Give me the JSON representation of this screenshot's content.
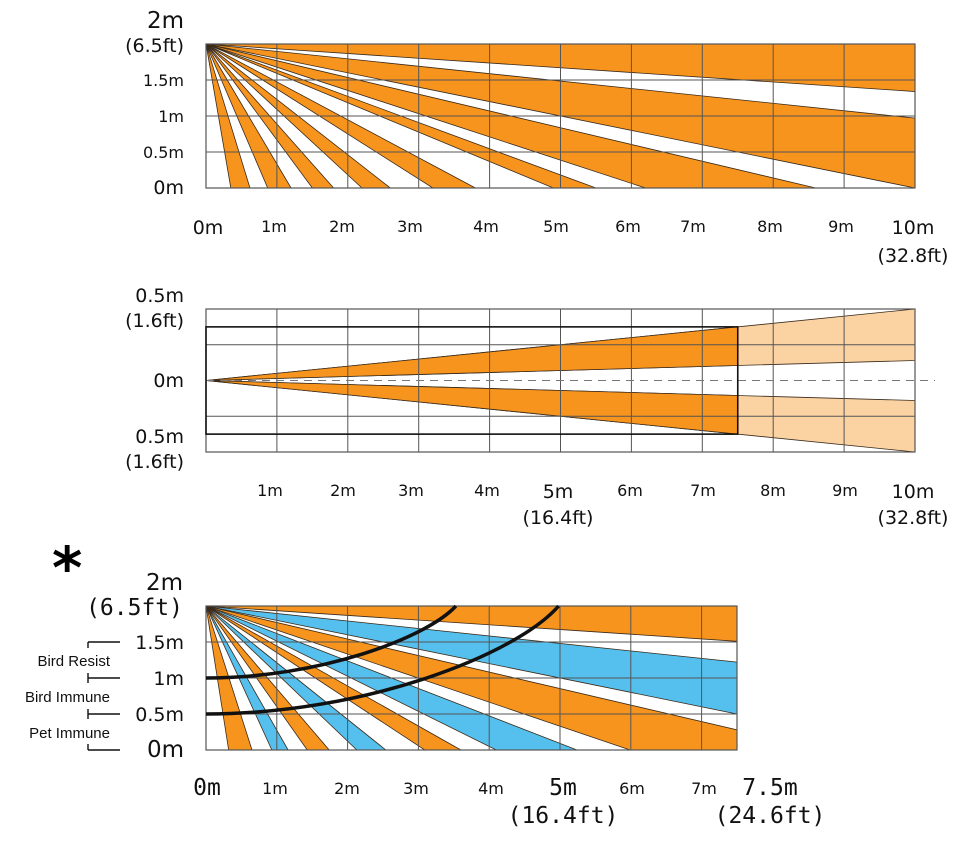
{
  "colors": {
    "orange": "#F7941D",
    "light_orange": "#FBD3A3",
    "blue": "#55C0EE",
    "grid": "#555555",
    "beam_edge": "#3a2a1a",
    "curve": "#111111"
  },
  "marker": {
    "symbol": "*"
  },
  "chart_data": [
    {
      "id": "side-view-10m",
      "type": "diagram",
      "title": "",
      "x_range_m": [
        0,
        10
      ],
      "y_range_m": [
        0,
        2
      ],
      "origin_m": [
        0,
        2
      ],
      "y_ticks": [
        {
          "value": 2,
          "label": "2m",
          "sub": "(6.5ft)"
        },
        {
          "value": 1.5,
          "label": "1.5m"
        },
        {
          "value": 1,
          "label": "1m"
        },
        {
          "value": 0.5,
          "label": "0.5m"
        },
        {
          "value": 0,
          "label": "0m"
        }
      ],
      "x_ticks": [
        {
          "value": 0,
          "label": "0m"
        },
        {
          "value": 1,
          "label": "1m"
        },
        {
          "value": 2,
          "label": "2m"
        },
        {
          "value": 3,
          "label": "3m"
        },
        {
          "value": 4,
          "label": "4m"
        },
        {
          "value": 5,
          "label": "5m"
        },
        {
          "value": 6,
          "label": "6m"
        },
        {
          "value": 7,
          "label": "7m"
        },
        {
          "value": 8,
          "label": "8m"
        },
        {
          "value": 9,
          "label": "9m"
        },
        {
          "value": 10,
          "label": "10m",
          "sub": "(32.8ft)"
        }
      ],
      "beams": [
        {
          "color": "orange",
          "edges": [
            [
              0.35,
              0
            ],
            [
              0.62,
              0
            ]
          ]
        },
        {
          "color": "orange",
          "edges": [
            [
              0.87,
              0
            ],
            [
              1.2,
              0
            ]
          ]
        },
        {
          "color": "orange",
          "edges": [
            [
              1.5,
              0
            ],
            [
              1.8,
              0
            ]
          ]
        },
        {
          "color": "orange",
          "edges": [
            [
              2.2,
              0
            ],
            [
              2.6,
              0
            ]
          ]
        },
        {
          "color": "orange",
          "edges": [
            [
              3.2,
              0
            ],
            [
              3.8,
              0
            ]
          ]
        },
        {
          "color": "orange",
          "edges": [
            [
              4.9,
              0
            ],
            [
              5.5,
              0
            ]
          ]
        },
        {
          "color": "orange",
          "edges": [
            [
              6.2,
              0
            ],
            [
              8.6,
              0
            ]
          ]
        },
        {
          "color": "orange",
          "edges": [
            [
              10,
              0
            ],
            [
              10,
              0.97
            ]
          ]
        },
        {
          "color": "orange",
          "edges": [
            [
              10,
              1.34
            ],
            [
              10,
              2
            ]
          ]
        }
      ]
    },
    {
      "id": "top-view-10m",
      "type": "diagram",
      "x_range_m": [
        0,
        10
      ],
      "y_range_m": [
        -0.5,
        0.5
      ],
      "origin_m": [
        0,
        0
      ],
      "y_ticks": [
        {
          "value": 0.5,
          "label": "0.5m",
          "sub": "(1.6ft)"
        },
        {
          "value": 0,
          "label": "0m"
        },
        {
          "value": -0.5,
          "label": "0.5m",
          "sub": "(1.6ft)"
        }
      ],
      "x_ticks": [
        {
          "value": 1,
          "label": "1m"
        },
        {
          "value": 2,
          "label": "2m"
        },
        {
          "value": 3,
          "label": "3m"
        },
        {
          "value": 4,
          "label": "4m"
        },
        {
          "value": 5,
          "label": "5m",
          "sub": "(16.4ft)"
        },
        {
          "value": 6,
          "label": "6m"
        },
        {
          "value": 7,
          "label": "7m"
        },
        {
          "value": 8,
          "label": "8m"
        },
        {
          "value": 9,
          "label": "9m"
        },
        {
          "value": 10,
          "label": "10m",
          "sub": "(32.8ft)"
        }
      ],
      "box": {
        "x_range_m": [
          0,
          7.5
        ],
        "y_range_m": [
          -0.375,
          0.375
        ]
      },
      "beams": [
        {
          "upper_edge_end_m": 0.5,
          "lower_edge_end_m": 0.14
        },
        {
          "upper_edge_end_m": -0.14,
          "lower_edge_end_m": -0.5
        }
      ],
      "range_split_m": 7.5,
      "centerline": "dashed"
    },
    {
      "id": "side-view-7.5m-pet",
      "type": "diagram",
      "x_range_m": [
        0,
        7.5
      ],
      "y_range_m": [
        0,
        2
      ],
      "origin_m": [
        0,
        2
      ],
      "y_ticks": [
        {
          "value": 2,
          "label": "2m",
          "sub": "(6.5ft)"
        },
        {
          "value": 1.5,
          "label": "1.5m"
        },
        {
          "value": 1,
          "label": "1m"
        },
        {
          "value": 0.5,
          "label": "0.5m"
        },
        {
          "value": 0,
          "label": "0m"
        }
      ],
      "x_ticks": [
        {
          "value": 0,
          "label": "0m"
        },
        {
          "value": 1,
          "label": "1m"
        },
        {
          "value": 2,
          "label": "2m"
        },
        {
          "value": 3,
          "label": "3m"
        },
        {
          "value": 4,
          "label": "4m"
        },
        {
          "value": 5,
          "label": "5m",
          "sub": "(16.4ft)"
        },
        {
          "value": 6,
          "label": "6m"
        },
        {
          "value": 7,
          "label": "7m"
        },
        {
          "value": 7.5,
          "label": "7.5m",
          "sub": "(24.6ft)"
        }
      ],
      "zones": [
        {
          "label": "Bird Resist",
          "range_m": [
            1,
            1.5
          ]
        },
        {
          "label": "Bird Immune",
          "range_m": [
            0.5,
            1
          ]
        },
        {
          "label": "Pet Immune",
          "range_m": [
            0,
            0.5
          ]
        }
      ],
      "beams": [
        {
          "color": "orange",
          "edges": [
            [
              0.32,
              0
            ],
            [
              0.65,
              0
            ]
          ]
        },
        {
          "color": "blue",
          "edges": [
            [
              0.93,
              0
            ],
            [
              1.16,
              0
            ]
          ]
        },
        {
          "color": "orange",
          "edges": [
            [
              1.43,
              0
            ],
            [
              1.74,
              0
            ]
          ]
        },
        {
          "color": "blue",
          "edges": [
            [
              2.13,
              0
            ],
            [
              2.54,
              0
            ]
          ]
        },
        {
          "color": "orange",
          "edges": [
            [
              3.09,
              0
            ],
            [
              3.6,
              0
            ]
          ]
        },
        {
          "color": "blue",
          "edges": [
            [
              4.1,
              0
            ],
            [
              5.24,
              0
            ]
          ]
        },
        {
          "color": "orange",
          "edges": [
            [
              5.99,
              0
            ],
            [
              7.5,
              0.28
            ]
          ]
        },
        {
          "color": "blue",
          "edges": [
            [
              7.5,
              0.5
            ],
            [
              7.5,
              1.22
            ]
          ]
        },
        {
          "color": "orange",
          "edges": [
            [
              7.5,
              1.51
            ],
            [
              7.5,
              2
            ]
          ]
        }
      ],
      "curves": [
        {
          "start_m": [
            0,
            1.0
          ],
          "end_m": [
            3.53,
            2.0
          ]
        },
        {
          "start_m": [
            0,
            0.5
          ],
          "end_m": [
            4.98,
            2.0
          ]
        }
      ]
    }
  ]
}
